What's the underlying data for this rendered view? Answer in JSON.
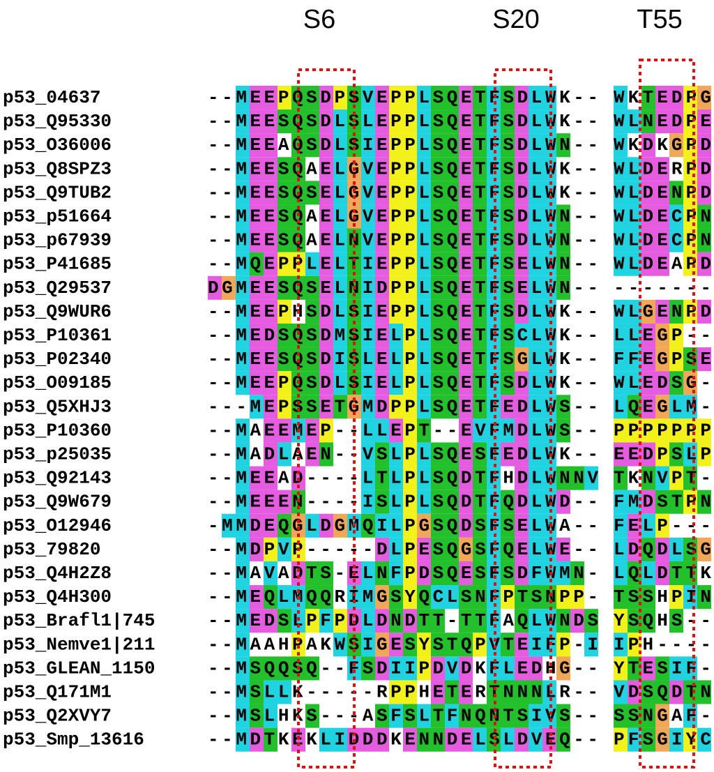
{
  "headers": [
    "S6",
    "S20",
    "T55"
  ],
  "residue_colors": {
    "M": "#1fd3e0",
    "L": "#1fd3e0",
    "I": "#1fd3e0",
    "V": "#1fd3e0",
    "F": "#1fd3e0",
    "W": "#1fd3e0",
    "C": "#1fd3e0",
    "E": "#e65ce0",
    "D": "#e65ce0",
    "S": "#22c02a",
    "T": "#22c02a",
    "Q": "#22c02a",
    "N": "#22c02a",
    "P": "#f2f21a",
    "Y": "#f2f21a",
    "G": "#f0a858"
  },
  "rows": [
    {
      "name": "p53_04637",
      "block1": "--MEEPQSDPSVEPPLSQETFSDLWK--",
      "block2": "WKTEDPG"
    },
    {
      "name": "p53_Q95330",
      "block1": "--MEESQSDLSLEPPLSQETFSDLWK--",
      "block2": "WLNEDPE"
    },
    {
      "name": "p53_O36006",
      "block1": "--MEEAQSDLSIEPPLSQETFSDLWN--",
      "block2": "WKDKGPD"
    },
    {
      "name": "p53_Q8SPZ3",
      "block1": "--MEESQAELGVEPPLSQETFSDLWK--",
      "block2": "WLDERPD"
    },
    {
      "name": "p53_Q9TUB2",
      "block1": "--MEESQSELGVEPPLSQETFSDLWK--",
      "block2": "WLDENPD"
    },
    {
      "name": "p53_p51664",
      "block1": "--MEESQAELGVEPPLSQETFSDLWN--",
      "block2": "WLDECPN"
    },
    {
      "name": "p53_p67939",
      "block1": "--MEESQAELNVEPPLSQETFSDLWN--",
      "block2": "WLDECPN"
    },
    {
      "name": "p53_P41685",
      "block1": "--MQEPPLELTIEPPLSQETFSELWN--",
      "block2": "WLDEAPD"
    },
    {
      "name": "p53_Q29537",
      "block1": "DGMEESQSELNIDPPLSQETFSELWN--",
      "block2": "-------"
    },
    {
      "name": "p53_Q9WUR6",
      "block1": "--MEEPHSDLSIEPPLSQETFSDLWK--",
      "block2": "WLGENPD"
    },
    {
      "name": "p53_P10361",
      "block1": "--MEDSQSDMSIELPLSQETFSCLWK--",
      "block2": "LLEGP--"
    },
    {
      "name": "p53_P02340",
      "block1": "--MEESQSDISLELPLSQETFSGLWK--",
      "block2": "FFEGPSE"
    },
    {
      "name": "p53_O09185",
      "block1": "--MEEPQSDLSIELPLSQETFSDLWK--",
      "block2": "WLEDSG-"
    },
    {
      "name": "p53_Q5XHJ3",
      "block1": "---MEPSSETGMDPPLSQETFEDLWS--",
      "block2": "LQEGLM-"
    },
    {
      "name": "p53_P10360",
      "block1": "--MAEEMEP--LLEPT--EVFMDLWS--",
      "block2": "PPPPPPP"
    },
    {
      "name": "p53_p25035",
      "block1": "--MADLAEN--VSLPLSQESFEDLWK--",
      "block2": "EEDPSLP"
    },
    {
      "name": "p53_Q92143",
      "block1": "--MEEAD----LTLPLSQDTFHDLWNNV",
      "block2": "TKNVPT-"
    },
    {
      "name": "p53_Q9W679",
      "block1": "--MEEEN----ISLPLSQDTFQDLWD--",
      "block2": "FMDSTPN"
    },
    {
      "name": "p53_O12946",
      "block1": "-MMDEQGLDGMQILPGSQDSFSELWA--",
      "block2": "FELP---"
    },
    {
      "name": "p53_79820",
      "block1": "--MDPVP-----DLPESQGSFQELWE--",
      "block2": "LDQDLSG"
    },
    {
      "name": "p53_Q4H2Z8",
      "block1": "--MAVADTS-ELNFPDSQESFSDFWMN-",
      "block2": "LQLDTTK"
    },
    {
      "name": "p53_Q4H300",
      "block1": "--MEQLMQQRIMGSYQCLSNFPTSNPP-",
      "block2": "TSSHPIN"
    },
    {
      "name": "p53_Brafl1|745",
      "block1": "--MEDSLPFPDLDNDTT-TTFAQLWNDS",
      "block2": "YSQHS--"
    },
    {
      "name": "p53_Nemve1|211",
      "block1": "--MAAHPAKWSIGESYSTQPVTEIFP-I",
      "block2": "IPH----"
    },
    {
      "name": "p53_GLEAN_1150",
      "block1": "--MSQQSQ--FSDIIPDVDKFLEDHG--",
      "block2": "YTESIF-"
    },
    {
      "name": "p53_Q171M1",
      "block1": "--MSLLK-----RPPHETERTNNNLR--",
      "block2": "VDSQDTN"
    },
    {
      "name": "p53_Q2XVY7",
      "block1": "--MSLHKS---ASFSLTFNQNTSIVS--",
      "block2": "SSNGAF-"
    },
    {
      "name": "p53_Smp_13616",
      "block1": "--MDTKEKLIDDDKENNDELSLDVEQ--",
      "block2": "PFSGIYC"
    }
  ]
}
